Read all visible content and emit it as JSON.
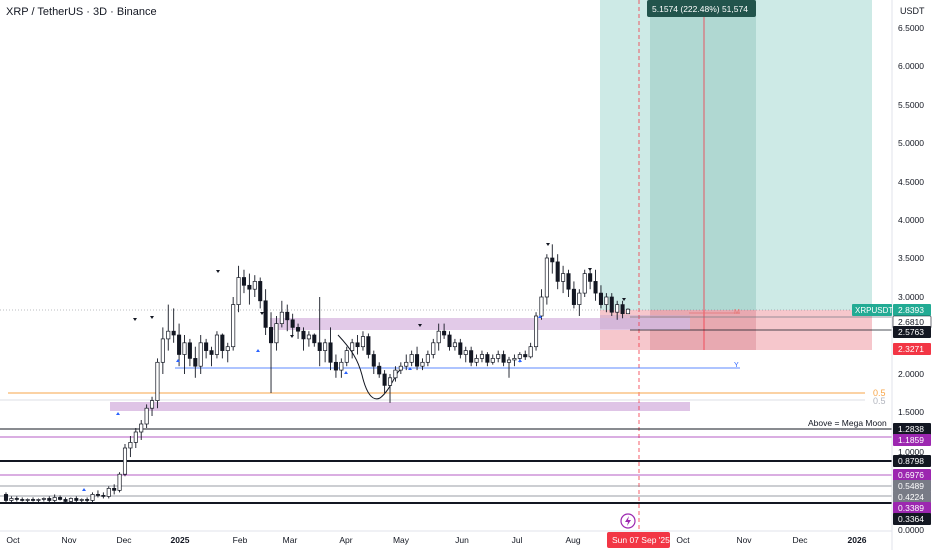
{
  "header": {
    "title": "XRP / TetherUS · 3D · Binance"
  },
  "colors": {
    "up": "#131722",
    "down": "#131722",
    "up_fill": "#ffffff",
    "long_zone": "#cdeae6",
    "long_zone_dark": "#b0d8d2",
    "short_zone": "#f6c7cc",
    "purple_zone": "#dfc4e6",
    "accent_red": "#f23645",
    "level_black": "#131722",
    "level_purple": "#9c27b0",
    "fib_orange": "#f7a64a",
    "blue_line": "#2962ff",
    "price_green": "#22ab94"
  },
  "chart_data": {
    "type": "candlestick",
    "symbol": "XRPUSDT",
    "y_axis": {
      "unit": "USDT",
      "ticks": [
        "6.5000",
        "6.0000",
        "5.5000",
        "5.0000",
        "4.5000",
        "4.0000",
        "3.5000",
        "3.0000",
        "2.5000",
        "2.0000",
        "1.5000",
        "1.0000",
        "0.5000",
        "0.0000"
      ],
      "range": [
        0,
        6.85
      ]
    },
    "x_axis": {
      "ticks": [
        "Oct",
        "Nov",
        "Dec",
        "2025",
        "Feb",
        "Mar",
        "Apr",
        "May",
        "Jun",
        "Jul",
        "Aug",
        "Oct",
        "Nov",
        "Dec",
        "2026"
      ]
    },
    "price_labels": [
      {
        "text": "XRPUSDT",
        "value": "2.8393",
        "style": "green"
      },
      {
        "text": "",
        "value": "2.6810",
        "style": "white"
      },
      {
        "text": "",
        "value": "2.5763",
        "style": "black"
      },
      {
        "text": "",
        "value": "2.3271",
        "style": "red"
      },
      {
        "text": "",
        "value": "1.2838",
        "style": "black"
      },
      {
        "text": "",
        "value": "1.1859",
        "style": "purple"
      },
      {
        "text": "",
        "value": "1.0000",
        "style": "plain"
      },
      {
        "text": "",
        "value": "0.8798",
        "style": "black"
      },
      {
        "text": "",
        "value": "0.6976",
        "style": "purple"
      },
      {
        "text": "",
        "value": "0.5489",
        "style": "gray"
      },
      {
        "text": "",
        "value": "0.4224",
        "style": "gray"
      },
      {
        "text": "",
        "value": "0.3389",
        "style": "purple"
      },
      {
        "text": "",
        "value": "0.3364",
        "style": "black"
      }
    ],
    "annotations": {
      "measure_label": "5.1574 (222.48%) 51,574",
      "mega_moon": "Above = Mega Moon",
      "fib_label_1": "0.5",
      "fib_label_2": "0.5",
      "cursor_date": "Sun 07 Sep '25",
      "m_label": "M",
      "y_label": "Y"
    },
    "series": [
      {
        "ohlc": [
          [
            0.58,
            0.6,
            0.5,
            0.52
          ],
          [
            0.52,
            0.56,
            0.5,
            0.54
          ],
          [
            0.54,
            0.56,
            0.51,
            0.53
          ],
          [
            0.53,
            0.55,
            0.51,
            0.52
          ],
          [
            0.52,
            0.54,
            0.5,
            0.53
          ],
          [
            0.53,
            0.55,
            0.51,
            0.52
          ],
          [
            0.52,
            0.54,
            0.5,
            0.53
          ],
          [
            0.53,
            0.55,
            0.51,
            0.54
          ],
          [
            0.54,
            0.56,
            0.5,
            0.52
          ],
          [
            0.52,
            0.58,
            0.5,
            0.55
          ],
          [
            0.55,
            0.57,
            0.52,
            0.53
          ],
          [
            0.53,
            0.55,
            0.5,
            0.51
          ],
          [
            0.51,
            0.55,
            0.49,
            0.54
          ],
          [
            0.54,
            0.56,
            0.5,
            0.52
          ],
          [
            0.52,
            0.54,
            0.49,
            0.53
          ],
          [
            0.53,
            0.55,
            0.5,
            0.52
          ],
          [
            0.52,
            0.6,
            0.5,
            0.58
          ],
          [
            0.58,
            0.62,
            0.55,
            0.57
          ],
          [
            0.57,
            0.6,
            0.54,
            0.56
          ],
          [
            0.56,
            0.66,
            0.54,
            0.64
          ],
          [
            0.64,
            0.68,
            0.58,
            0.62
          ],
          [
            0.62,
            0.8,
            0.6,
            0.78
          ],
          [
            0.78,
            1.1,
            0.76,
            1.05
          ],
          [
            1.05,
            1.2,
            0.95,
            1.12
          ],
          [
            1.12,
            1.3,
            1.05,
            1.25
          ],
          [
            1.25,
            1.4,
            1.15,
            1.35
          ],
          [
            1.35,
            1.6,
            1.3,
            1.55
          ],
          [
            1.55,
            1.7,
            1.45,
            1.65
          ],
          [
            1.65,
            2.2,
            1.55,
            2.15
          ],
          [
            2.15,
            2.6,
            2.0,
            2.45
          ],
          [
            2.45,
            2.9,
            2.3,
            2.55
          ],
          [
            2.55,
            2.85,
            2.4,
            2.5
          ],
          [
            2.5,
            2.65,
            2.1,
            2.25
          ],
          [
            2.25,
            2.5,
            2.0,
            2.4
          ],
          [
            2.4,
            2.45,
            2.1,
            2.2
          ],
          [
            2.2,
            2.35,
            1.95,
            2.1
          ],
          [
            2.1,
            2.5,
            2.0,
            2.4
          ],
          [
            2.4,
            2.45,
            2.2,
            2.3
          ],
          [
            2.3,
            2.35,
            2.1,
            2.25
          ],
          [
            2.25,
            2.55,
            2.2,
            2.5
          ],
          [
            2.5,
            2.52,
            2.2,
            2.3
          ],
          [
            2.3,
            2.4,
            2.15,
            2.35
          ],
          [
            2.35,
            3.0,
            2.3,
            2.9
          ],
          [
            2.9,
            3.4,
            2.8,
            3.25
          ],
          [
            3.25,
            3.35,
            3.05,
            3.15
          ],
          [
            3.15,
            3.3,
            2.9,
            3.1
          ],
          [
            3.1,
            3.28,
            3.0,
            3.2
          ],
          [
            3.2,
            3.25,
            2.85,
            2.95
          ],
          [
            2.95,
            3.1,
            2.5,
            2.6
          ],
          [
            2.6,
            2.8,
            1.75,
            2.4
          ],
          [
            2.4,
            2.75,
            2.3,
            2.65
          ],
          [
            2.65,
            2.95,
            2.6,
            2.8
          ],
          [
            2.8,
            2.9,
            2.55,
            2.7
          ],
          [
            2.7,
            2.78,
            2.5,
            2.6
          ],
          [
            2.6,
            2.65,
            2.45,
            2.55
          ],
          [
            2.55,
            2.6,
            2.3,
            2.45
          ],
          [
            2.45,
            2.55,
            2.35,
            2.5
          ],
          [
            2.5,
            2.52,
            2.35,
            2.4
          ],
          [
            2.4,
            3.0,
            2.1,
            2.3
          ],
          [
            2.3,
            2.45,
            2.15,
            2.4
          ],
          [
            2.4,
            2.6,
            2.05,
            2.15
          ],
          [
            2.15,
            2.25,
            1.95,
            2.05
          ],
          [
            2.05,
            2.2,
            1.95,
            2.15
          ],
          [
            2.15,
            2.35,
            2.1,
            2.3
          ],
          [
            2.3,
            2.45,
            2.2,
            2.4
          ],
          [
            2.4,
            2.5,
            2.25,
            2.35
          ],
          [
            2.35,
            2.55,
            2.3,
            2.48
          ],
          [
            2.48,
            2.52,
            2.2,
            2.25
          ],
          [
            2.25,
            2.3,
            2.0,
            2.1
          ],
          [
            2.1,
            2.15,
            1.95,
            2.0
          ],
          [
            2.0,
            2.05,
            1.75,
            1.85
          ],
          [
            1.85,
            2.0,
            1.62,
            1.95
          ],
          [
            1.95,
            2.1,
            1.9,
            2.05
          ],
          [
            2.05,
            2.15,
            2.0,
            2.1
          ],
          [
            2.1,
            2.25,
            2.05,
            2.15
          ],
          [
            2.15,
            2.3,
            2.1,
            2.25
          ],
          [
            2.25,
            2.35,
            2.05,
            2.1
          ],
          [
            2.1,
            2.2,
            2.05,
            2.15
          ],
          [
            2.15,
            2.3,
            2.1,
            2.25
          ],
          [
            2.25,
            2.45,
            2.2,
            2.4
          ],
          [
            2.4,
            2.65,
            2.3,
            2.55
          ],
          [
            2.55,
            2.65,
            2.45,
            2.5
          ],
          [
            2.5,
            2.55,
            2.3,
            2.35
          ],
          [
            2.35,
            2.45,
            2.3,
            2.4
          ],
          [
            2.4,
            2.45,
            2.2,
            2.25
          ],
          [
            2.25,
            2.35,
            2.15,
            2.3
          ],
          [
            2.3,
            2.35,
            2.1,
            2.15
          ],
          [
            2.15,
            2.25,
            2.1,
            2.2
          ],
          [
            2.2,
            2.3,
            2.15,
            2.25
          ],
          [
            2.25,
            2.28,
            2.1,
            2.15
          ],
          [
            2.15,
            2.25,
            2.12,
            2.2
          ],
          [
            2.2,
            2.3,
            2.15,
            2.25
          ],
          [
            2.25,
            2.3,
            2.1,
            2.15
          ],
          [
            2.15,
            2.22,
            1.95,
            2.18
          ],
          [
            2.18,
            2.25,
            2.1,
            2.2
          ],
          [
            2.2,
            2.28,
            2.15,
            2.25
          ],
          [
            2.25,
            2.3,
            2.18,
            2.22
          ],
          [
            2.22,
            2.4,
            2.2,
            2.35
          ],
          [
            2.35,
            2.8,
            2.3,
            2.75
          ],
          [
            2.75,
            3.1,
            2.7,
            3.0
          ],
          [
            3.0,
            3.55,
            2.9,
            3.5
          ],
          [
            3.5,
            3.68,
            3.3,
            3.45
          ],
          [
            3.45,
            3.55,
            3.1,
            3.2
          ],
          [
            3.2,
            3.4,
            3.05,
            3.3
          ],
          [
            3.3,
            3.35,
            3.0,
            3.1
          ],
          [
            3.1,
            3.2,
            2.85,
            2.9
          ],
          [
            2.9,
            3.1,
            2.75,
            3.05
          ],
          [
            3.05,
            3.35,
            3.0,
            3.3
          ],
          [
            3.3,
            3.35,
            3.1,
            3.2
          ],
          [
            3.2,
            3.35,
            2.95,
            3.05
          ],
          [
            3.05,
            3.15,
            2.85,
            2.9
          ],
          [
            2.9,
            3.05,
            2.8,
            3.0
          ],
          [
            3.0,
            3.05,
            2.75,
            2.8
          ],
          [
            2.8,
            2.95,
            2.7,
            2.9
          ],
          [
            2.9,
            2.95,
            2.72,
            2.78
          ],
          [
            2.78,
            2.85,
            2.78,
            2.84
          ]
        ]
      }
    ]
  }
}
